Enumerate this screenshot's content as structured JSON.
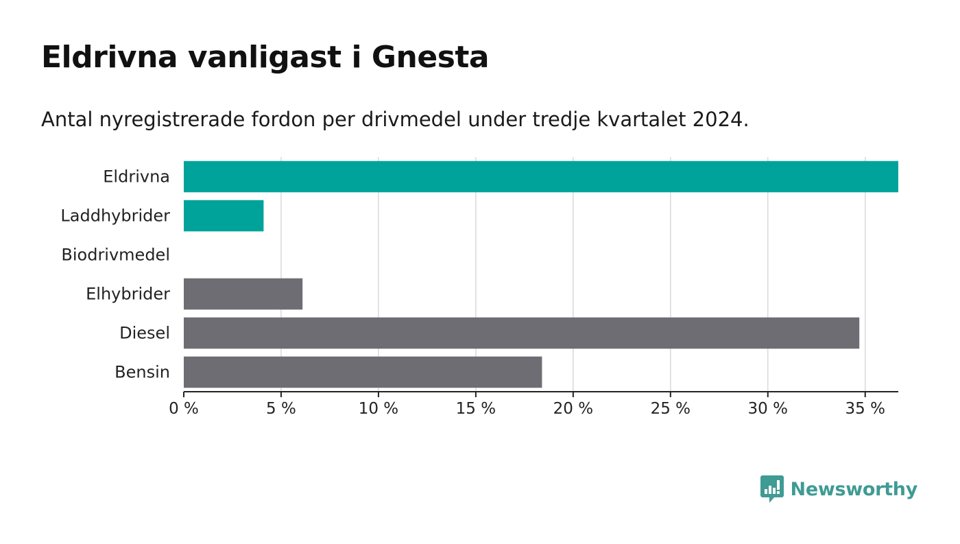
{
  "header": {
    "title": "Eldrivna vanligast i Gnesta",
    "subtitle": "Antal nyregistrerade fordon per drivmedel under tredje kvartalet 2024."
  },
  "chart_data": {
    "type": "bar",
    "orientation": "horizontal",
    "title": "Eldrivna vanligast i Gnesta",
    "subtitle": "Antal nyregistrerade fordon per drivmedel under tredje kvartalet 2024.",
    "categories": [
      "Eldrivna",
      "Laddhybrider",
      "Biodrivmedel",
      "Elhybrider",
      "Diesel",
      "Bensin"
    ],
    "values": [
      36.7,
      4.1,
      0,
      6.1,
      34.7,
      18.4
    ],
    "colors": [
      "#00a39a",
      "#00a39a",
      "#00a39a",
      "#6e6d73",
      "#6e6d73",
      "#6e6d73"
    ],
    "xlim": [
      0,
      36.7
    ],
    "xticks": [
      0,
      5,
      10,
      15,
      20,
      25,
      30,
      35
    ],
    "xtick_labels": [
      "0 %",
      "5 %",
      "10 %",
      "15 %",
      "20 %",
      "25 %",
      "30 %",
      "35 %"
    ],
    "xlabel": "",
    "ylabel": "",
    "grid": "vertical"
  },
  "branding": {
    "name": "Newsworthy",
    "color": "#3f9b94"
  }
}
